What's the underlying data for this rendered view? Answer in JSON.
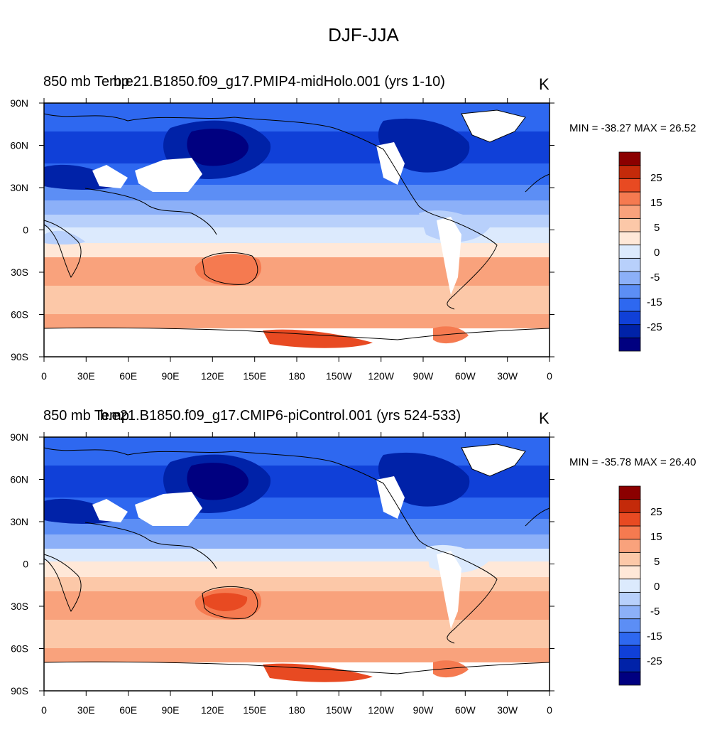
{
  "main_title": "DJF-JJA",
  "legend_labels": [
    "25",
    "15",
    "5",
    "0",
    "-5",
    "-15",
    "-25"
  ],
  "colorbar_colors": [
    "#000080",
    "#0022a8",
    "#1040d8",
    "#2e68f0",
    "#5c8ef5",
    "#8cb0f8",
    "#b8d0fb",
    "#dceafd",
    "#ffe8d8",
    "#fcc8a8",
    "#f9a27c",
    "#f57a50",
    "#e84a22",
    "#c42a0a",
    "#8b0000"
  ],
  "axes": {
    "lat_labels": [
      "90N",
      "60N",
      "30N",
      "0",
      "30S",
      "60S",
      "90S"
    ],
    "lon_labels": [
      "0",
      "30E",
      "60E",
      "90E",
      "120E",
      "150E",
      "180",
      "150W",
      "120W",
      "90W",
      "60W",
      "30W",
      "0"
    ]
  },
  "panels": [
    {
      "left_title": "850 mb Temp",
      "center_title": "b.e21.B1850.f09_g17.PMIP4-midHolo.001 (yrs 1-10)",
      "units": "K",
      "minmax": "MIN = -38.27 MAX =  26.52",
      "min": -38.27,
      "max": 26.52
    },
    {
      "left_title": "850 mb Temp",
      "center_title": "b.e21.B1850.f09_g17.CMIP6-piControl.001 (yrs 524-533)",
      "units": "K",
      "minmax": "MIN = -35.78 MAX =  26.40",
      "min": -35.78,
      "max": 26.4
    }
  ]
}
